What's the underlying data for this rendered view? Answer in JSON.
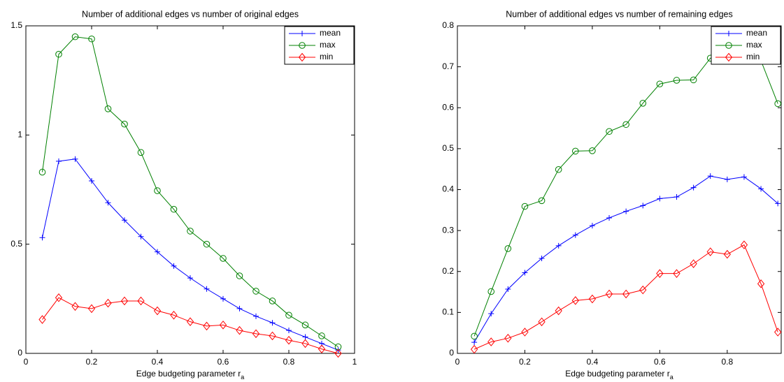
{
  "chart_data": [
    {
      "type": "line",
      "title": "Number of additional edges vs number of original edges",
      "xlabel": "Edge budgeting parameter r",
      "xlabel_subscript": "a",
      "x": [
        0.05,
        0.1,
        0.15,
        0.2,
        0.25,
        0.3,
        0.35,
        0.4,
        0.45,
        0.5,
        0.55,
        0.6,
        0.65,
        0.7,
        0.75,
        0.8,
        0.85,
        0.9,
        0.95
      ],
      "series": [
        {
          "name": "mean",
          "color": "#0000ff",
          "marker": "plus",
          "values": [
            0.53,
            0.88,
            0.89,
            0.79,
            0.69,
            0.61,
            0.535,
            0.465,
            0.4,
            0.345,
            0.295,
            0.25,
            0.205,
            0.17,
            0.14,
            0.105,
            0.075,
            0.045,
            0.015
          ]
        },
        {
          "name": "max",
          "color": "#008000",
          "marker": "circle",
          "values": [
            0.83,
            1.37,
            1.45,
            1.44,
            1.12,
            1.05,
            0.92,
            0.745,
            0.66,
            0.56,
            0.5,
            0.435,
            0.355,
            0.285,
            0.24,
            0.175,
            0.13,
            0.08,
            0.03
          ]
        },
        {
          "name": "min",
          "color": "#ff0000",
          "marker": "diamond",
          "values": [
            0.155,
            0.255,
            0.215,
            0.205,
            0.23,
            0.24,
            0.24,
            0.195,
            0.175,
            0.145,
            0.125,
            0.13,
            0.105,
            0.09,
            0.08,
            0.06,
            0.045,
            0.02,
            0.0
          ]
        }
      ],
      "xlim": [
        0,
        1
      ],
      "xticks": [
        0,
        0.2,
        0.4,
        0.6,
        0.8,
        1
      ],
      "ylim": [
        0,
        1.5
      ],
      "yticks": [
        0,
        0.5,
        1,
        1.5
      ],
      "legend": "upper right",
      "grid": false
    },
    {
      "type": "line",
      "title": "Number of additional edges vs number of remaining edges",
      "xlabel": "Edge budgeting parameter r",
      "xlabel_subscript": "a",
      "x": [
        0.05,
        0.1,
        0.15,
        0.2,
        0.25,
        0.3,
        0.35,
        0.4,
        0.45,
        0.5,
        0.55,
        0.6,
        0.65,
        0.7,
        0.75,
        0.8,
        0.85,
        0.9,
        0.95
      ],
      "series": [
        {
          "name": "mean",
          "color": "#0000ff",
          "marker": "plus",
          "values": [
            0.027,
            0.097,
            0.157,
            0.197,
            0.232,
            0.263,
            0.289,
            0.312,
            0.331,
            0.347,
            0.361,
            0.378,
            0.382,
            0.405,
            0.433,
            0.425,
            0.431,
            0.402,
            0.366
          ]
        },
        {
          "name": "max",
          "color": "#008000",
          "marker": "circle",
          "values": [
            0.042,
            0.151,
            0.256,
            0.359,
            0.373,
            0.449,
            0.494,
            0.495,
            0.542,
            0.559,
            0.611,
            0.658,
            0.667,
            0.668,
            0.721,
            0.725,
            0.73,
            0.715,
            0.61
          ]
        },
        {
          "name": "min",
          "color": "#ff0000",
          "marker": "diamond",
          "values": [
            0.01,
            0.028,
            0.037,
            0.052,
            0.077,
            0.104,
            0.129,
            0.133,
            0.145,
            0.145,
            0.155,
            0.195,
            0.195,
            0.219,
            0.248,
            0.242,
            0.265,
            0.17,
            0.052
          ]
        }
      ],
      "xlim": [
        0,
        0.96
      ],
      "xticks": [
        0,
        0.2,
        0.4,
        0.6,
        0.8
      ],
      "ylim": [
        0,
        0.8
      ],
      "yticks": [
        0,
        0.1,
        0.2,
        0.3,
        0.4,
        0.5,
        0.6,
        0.7,
        0.8
      ],
      "legend": "upper right",
      "grid": false
    }
  ]
}
